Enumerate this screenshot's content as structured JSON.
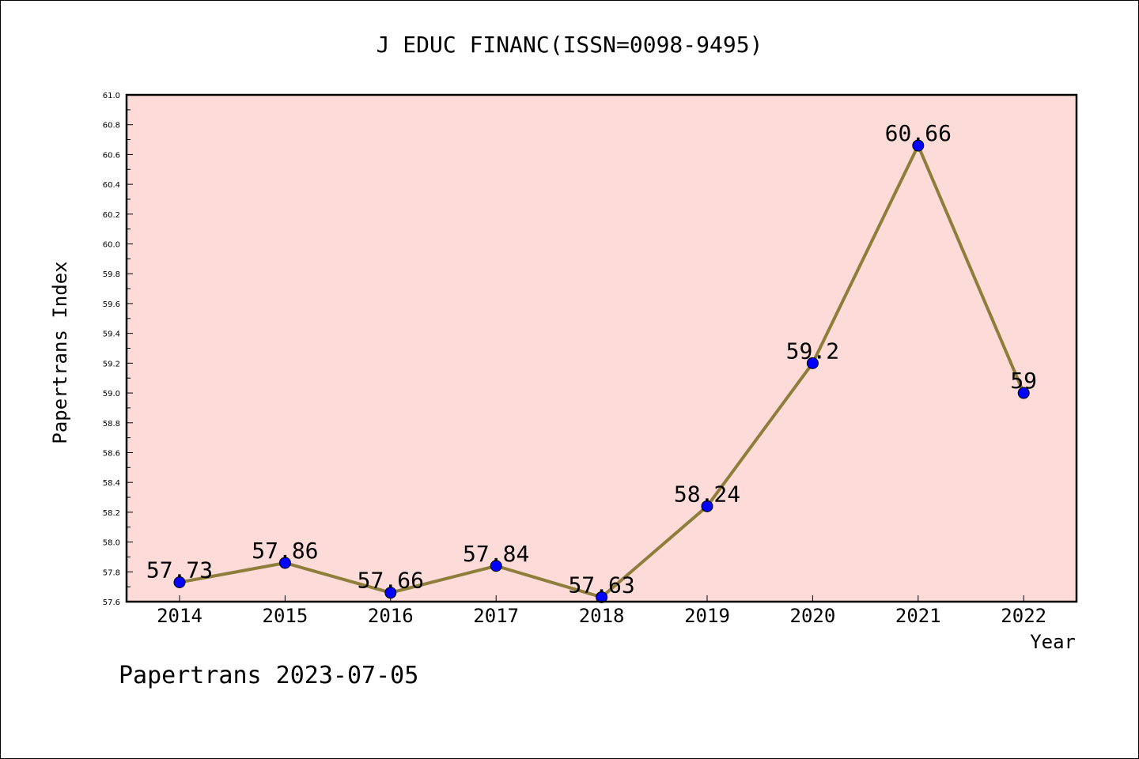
{
  "colors": {
    "plot_background": "#fddbd9",
    "line": "#8f7d3b",
    "marker": "#0000ff",
    "axis": "#000000"
  },
  "chart_data": {
    "type": "line",
    "title": "J EDUC FINANC(ISSN=0098-9495)",
    "xlabel": "Year",
    "ylabel": "Papertrans Index",
    "categories": [
      "2014",
      "2015",
      "2016",
      "2017",
      "2018",
      "2019",
      "2020",
      "2021",
      "2022"
    ],
    "series": [
      {
        "values": [
          57.73,
          57.86,
          57.66,
          57.84,
          57.63,
          58.24,
          59.2,
          60.66,
          59.0
        ],
        "data_labels": [
          "57.73",
          "57.86",
          "57.66",
          "57.84",
          "57.63",
          "58.24",
          "59.2",
          "60.66",
          "59"
        ]
      }
    ],
    "ylim": [
      57.6,
      61.0
    ],
    "y_ticks": [
      "57.6",
      "57.8",
      "58.0",
      "58.2",
      "58.4",
      "58.6",
      "58.8",
      "59.0",
      "59.2",
      "59.4",
      "59.6",
      "59.8",
      "60.0",
      "60.2",
      "60.4",
      "60.6",
      "60.8",
      "61.0"
    ],
    "grid": false,
    "legend": "none"
  },
  "footer": {
    "text": "Papertrans 2023-07-05"
  }
}
